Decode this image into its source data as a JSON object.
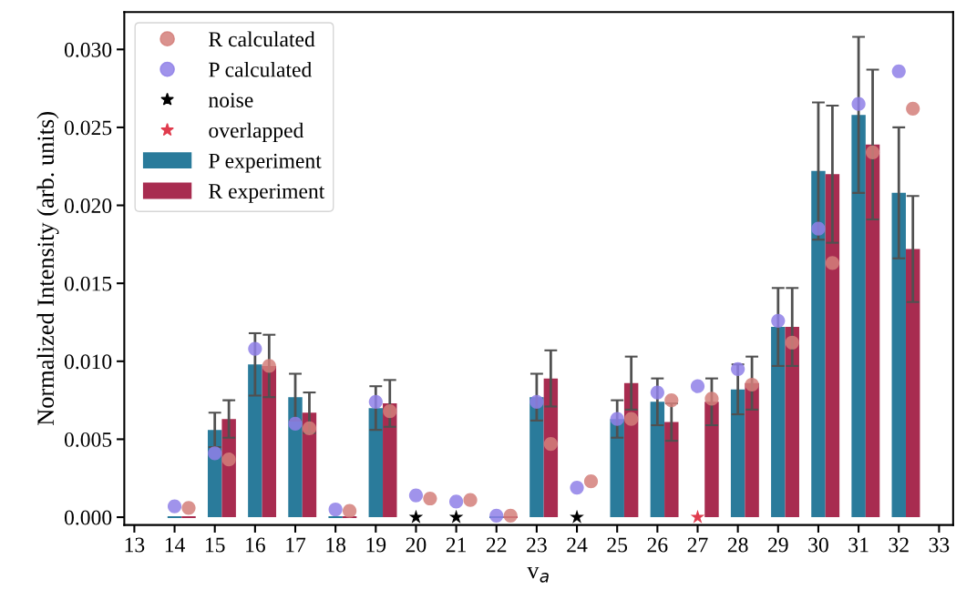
{
  "chart_data": {
    "type": "bar",
    "xlabel": "v$_{a}$",
    "ylabel": "Normalized Intensity (arb. units)",
    "x": [
      14,
      15,
      16,
      17,
      18,
      19,
      20,
      21,
      22,
      23,
      24,
      25,
      26,
      27,
      28,
      29,
      30,
      31,
      32
    ],
    "xlim": [
      12.75,
      33.35
    ],
    "xticks": [
      13,
      14,
      15,
      16,
      17,
      18,
      19,
      20,
      21,
      22,
      23,
      24,
      25,
      26,
      27,
      28,
      29,
      30,
      31,
      32,
      33
    ],
    "ylim": [
      -0.0005,
      0.0324
    ],
    "yticks": [
      {
        "value": 0,
        "label": "0.000"
      },
      {
        "value": 0.005,
        "label": "0.005"
      },
      {
        "value": 0.01,
        "label": "0.010"
      },
      {
        "value": 0.015,
        "label": "0.015"
      },
      {
        "value": 0.02,
        "label": "0.020"
      },
      {
        "value": 0.025,
        "label": "0.025"
      },
      {
        "value": 0.03,
        "label": "0.030"
      }
    ],
    "legend": "top left",
    "grid": false,
    "series": [
      {
        "name": "R calculated",
        "type": "scatter",
        "marker": "circle",
        "color": "#d47f7a",
        "x": [
          14.35,
          15.35,
          16.35,
          17.35,
          18.35,
          19.35,
          20.35,
          21.35,
          22.35,
          23.35,
          24.35,
          25.35,
          26.35,
          27.35,
          28.35,
          29.35,
          30.35,
          31.35,
          32.35
        ],
        "values": [
          0.0006,
          0.0037,
          0.0097,
          0.0057,
          0.0004,
          0.0068,
          0.0012,
          0.0011,
          0.0001,
          0.0047,
          0.0023,
          0.0063,
          0.0075,
          0.0076,
          0.0085,
          0.0112,
          0.0163,
          0.0234,
          0.0262
        ]
      },
      {
        "name": "P calculated",
        "type": "scatter",
        "marker": "circle",
        "color": "#8f80e8",
        "values": [
          0.0007,
          0.0041,
          0.0108,
          0.006,
          0.0005,
          0.0074,
          0.0014,
          0.001,
          0.0001,
          0.0074,
          0.0019,
          0.0063,
          0.008,
          0.0084,
          0.0095,
          0.0126,
          0.0185,
          0.0265,
          0.0286
        ]
      },
      {
        "name": "noise",
        "type": "scatter",
        "marker": "star",
        "color": "#000000",
        "x": [
          20,
          21,
          24
        ],
        "values": [
          0,
          0,
          0
        ]
      },
      {
        "name": "overlapped",
        "type": "scatter",
        "marker": "star",
        "color": "#e03c4e",
        "x": [
          27
        ],
        "values": [
          0
        ]
      },
      {
        "name": "P experiment",
        "color": "#2a7b9b",
        "values": [
          0,
          0.0056,
          0.0098,
          0.0077,
          0,
          0.007,
          null,
          null,
          0,
          0.0077,
          null,
          0.0063,
          0.0074,
          null,
          0.0082,
          0.0122,
          0.0222,
          0.0258,
          0.0208
        ],
        "errors": [
          null,
          0.0011,
          0.002,
          0.0015,
          null,
          0.0014,
          null,
          null,
          null,
          0.0015,
          null,
          0.0012,
          0.0015,
          null,
          0.0016,
          0.0025,
          0.0044,
          0.005,
          0.0042
        ]
      },
      {
        "name": "R experiment",
        "color": "#a82c50",
        "values": [
          0,
          0.0063,
          0.0097,
          0.0067,
          0,
          0.0073,
          null,
          null,
          0,
          0.0089,
          null,
          0.0086,
          0.0061,
          0.0074,
          0.0086,
          0.0122,
          0.022,
          0.0239,
          0.0172
        ],
        "errors": [
          null,
          0.0012,
          0.002,
          0.0013,
          null,
          0.0015,
          null,
          null,
          null,
          0.0018,
          null,
          0.0017,
          0.0012,
          0.0015,
          0.0017,
          0.0025,
          0.0044,
          0.0048,
          0.0034
        ]
      }
    ]
  }
}
